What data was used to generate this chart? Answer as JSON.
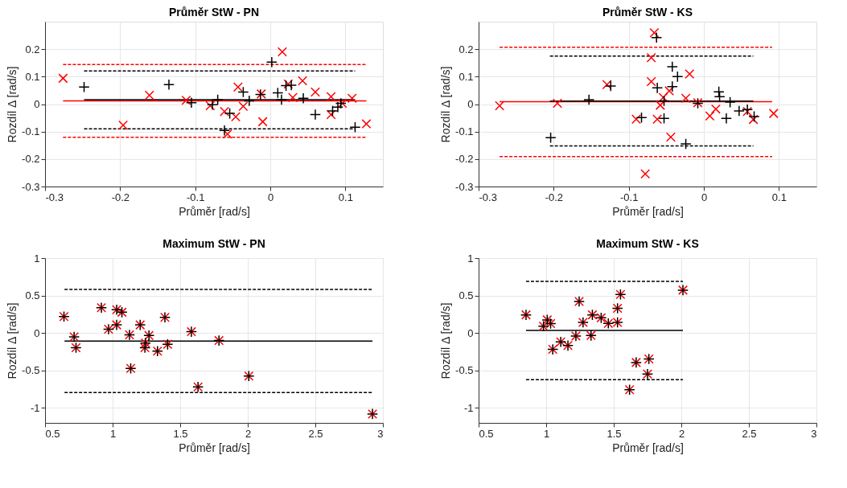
{
  "chart_data": [
    {
      "type": "scatter",
      "title": "Průměr StW - PN",
      "xlabel": "Průměr [rad/s]",
      "ylabel": "Rozdíl Δ [rad/s]",
      "xlim": [
        -0.3,
        0.15
      ],
      "ylim": [
        -0.3,
        0.3
      ],
      "xticks": [
        -0.3,
        -0.2,
        -0.1,
        0,
        0.1
      ],
      "yticks": [
        -0.3,
        -0.2,
        -0.1,
        0,
        0.1,
        0.2
      ],
      "grid": true,
      "series": [
        {
          "type": "line",
          "color": "#ff0000",
          "line_style": "dashed",
          "x": [
            -0.276,
            0.128
          ],
          "values": [
            0.144,
            0.144
          ]
        },
        {
          "type": "line",
          "color": "#ff0000",
          "line_style": "solid",
          "x": [
            -0.276,
            0.128
          ],
          "values": [
            0.012,
            0.012
          ]
        },
        {
          "type": "line",
          "color": "#ff0000",
          "line_style": "dashed",
          "x": [
            -0.276,
            0.128
          ],
          "values": [
            -0.121,
            -0.121
          ]
        },
        {
          "type": "line",
          "color": "#000000",
          "line_style": "dashed",
          "x": [
            -0.248,
            0.113
          ],
          "values": [
            0.121,
            0.121
          ]
        },
        {
          "type": "line",
          "color": "#000000",
          "line_style": "solid",
          "x": [
            -0.248,
            0.113
          ],
          "values": [
            0.016,
            0.016
          ]
        },
        {
          "type": "line",
          "color": "#000000",
          "line_style": "dashed",
          "x": [
            -0.248,
            0.113
          ],
          "values": [
            -0.09,
            -0.09
          ]
        },
        {
          "type": "scatter",
          "color": "#ff0000",
          "marker": "cross",
          "x": [
            -0.276,
            -0.196,
            -0.161,
            -0.112,
            -0.08,
            -0.061,
            -0.057,
            -0.046,
            -0.043,
            -0.036,
            -0.012,
            -0.01,
            0.016,
            0.024,
            0.03,
            0.043,
            0.06,
            0.081,
            0.081,
            0.096,
            0.109,
            0.128
          ],
          "values": [
            0.094,
            -0.077,
            0.032,
            0.014,
            -0.006,
            -0.027,
            -0.109,
            -0.046,
            0.062,
            -0.008,
            0.037,
            -0.064,
            0.19,
            0.073,
            0.024,
            0.085,
            0.044,
            0.027,
            -0.038,
            0.003,
            0.021,
            -0.072
          ]
        },
        {
          "type": "scatter",
          "color": "#000000",
          "marker": "plus",
          "x": [
            -0.248,
            -0.135,
            -0.105,
            -0.077,
            -0.07,
            -0.061,
            -0.054,
            -0.036,
            -0.028,
            -0.013,
            0.002,
            0.01,
            0.015,
            0.021,
            0.028,
            0.044,
            0.06,
            0.083,
            0.09,
            0.094,
            0.113
          ],
          "values": [
            0.062,
            0.071,
            0.005,
            -0.002,
            0.016,
            -0.096,
            -0.034,
            0.044,
            0.012,
            0.035,
            0.153,
            0.041,
            0.016,
            0.067,
            0.069,
            0.021,
            -0.038,
            -0.025,
            -0.011,
            0.003,
            -0.084
          ]
        }
      ]
    },
    {
      "type": "scatter",
      "title": "Průměr StW - KS",
      "xlabel": "Průměr [rad/s]",
      "ylabel": "Rozdíl Δ [rad/s]",
      "xlim": [
        -0.3,
        0.15
      ],
      "ylim": [
        -0.3,
        0.3
      ],
      "xticks": [
        -0.3,
        -0.2,
        -0.1,
        0,
        0.1
      ],
      "yticks": [
        -0.3,
        -0.2,
        -0.1,
        0,
        0.1,
        0.2
      ],
      "grid": true,
      "series": [
        {
          "type": "line",
          "color": "#ff0000",
          "line_style": "dashed",
          "x": [
            -0.272,
            0.091
          ],
          "values": [
            0.207,
            0.207
          ]
        },
        {
          "type": "line",
          "color": "#ff0000",
          "line_style": "solid",
          "x": [
            -0.272,
            0.091
          ],
          "values": [
            0.009,
            0.009
          ]
        },
        {
          "type": "line",
          "color": "#ff0000",
          "line_style": "dashed",
          "x": [
            -0.272,
            0.091
          ],
          "values": [
            -0.191,
            -0.191
          ]
        },
        {
          "type": "line",
          "color": "#000000",
          "line_style": "dashed",
          "x": [
            -0.205,
            0.066
          ],
          "values": [
            0.175,
            0.175
          ]
        },
        {
          "type": "line",
          "color": "#000000",
          "line_style": "solid",
          "x": [
            -0.205,
            0.066
          ],
          "values": [
            0.011,
            0.011
          ]
        },
        {
          "type": "line",
          "color": "#000000",
          "line_style": "dashed",
          "x": [
            -0.205,
            0.066
          ],
          "values": [
            -0.152,
            -0.152
          ]
        },
        {
          "type": "scatter",
          "color": "#ff0000",
          "marker": "cross",
          "x": [
            -0.272,
            -0.195,
            -0.129,
            -0.09,
            -0.078,
            -0.07,
            -0.07,
            -0.066,
            -0.062,
            -0.058,
            -0.054,
            -0.046,
            -0.044,
            -0.024,
            -0.019,
            -0.008,
            0.008,
            0.016,
            0.058,
            0.066,
            0.093
          ],
          "values": [
            -0.006,
            0.003,
            0.071,
            -0.055,
            -0.254,
            0.169,
            0.082,
            0.26,
            -0.055,
            -0.004,
            0.024,
            0.048,
            -0.12,
            0.021,
            0.11,
            0.005,
            -0.043,
            -0.018,
            -0.027,
            -0.056,
            -0.034
          ]
        },
        {
          "type": "scatter",
          "color": "#000000",
          "marker": "plus",
          "x": [
            -0.204,
            -0.153,
            -0.124,
            -0.083,
            -0.063,
            -0.062,
            -0.053,
            -0.053,
            -0.042,
            -0.042,
            -0.035,
            -0.024,
            -0.008,
            0.02,
            0.021,
            0.035,
            0.03,
            0.047,
            0.058,
            0.067
          ],
          "values": [
            -0.122,
            0.016,
            0.066,
            -0.049,
            0.242,
            0.059,
            -0.052,
            0.012,
            0.064,
            0.136,
            0.1,
            -0.145,
            0.003,
            0.045,
            0.027,
            0.007,
            -0.052,
            -0.025,
            -0.02,
            -0.045
          ]
        }
      ]
    },
    {
      "type": "scatter",
      "title": "Maximum StW - PN",
      "xlabel": "Průměr [rad/s]",
      "ylabel": "Rozdíl Δ [rad/s]",
      "xlim": [
        0.5,
        3
      ],
      "ylim": [
        -1.2,
        1
      ],
      "xticks": [
        0.5,
        1,
        1.5,
        2,
        2.5,
        3
      ],
      "yticks": [
        -1,
        -0.5,
        0,
        0.5,
        1
      ],
      "grid": true,
      "series": [
        {
          "type": "line",
          "color": "#000000",
          "line_style": "dashed",
          "x": [
            0.644,
            2.923
          ],
          "values": [
            0.581,
            0.581
          ]
        },
        {
          "type": "line",
          "color": "#000000",
          "line_style": "solid",
          "x": [
            0.644,
            2.923
          ],
          "values": [
            -0.108,
            -0.108
          ]
        },
        {
          "type": "line",
          "color": "#000000",
          "line_style": "dashed",
          "x": [
            0.644,
            2.923
          ],
          "values": [
            -0.794,
            -0.794
          ]
        },
        {
          "type": "scatter",
          "color": "#ff0000",
          "marker": "cross",
          "x": [
            0.64,
            0.715,
            0.729,
            0.917,
            0.97,
            1.03,
            1.03,
            1.069,
            1.134,
            1.125,
            1.204,
            1.239,
            1.243,
            1.269,
            1.332,
            1.387,
            1.407,
            1.583,
            1.632,
            1.787,
            2.008,
            2.923
          ],
          "values": [
            0.22,
            -0.051,
            -0.196,
            0.338,
            0.051,
            0.108,
            0.311,
            0.277,
            -0.473,
            -0.024,
            0.108,
            -0.196,
            -0.135,
            -0.034,
            -0.243,
            0.209,
            -0.152,
            0.017,
            -0.72,
            -0.101,
            -0.574,
            -1.081
          ]
        },
        {
          "type": "scatter",
          "color": "#000000",
          "marker": "plus",
          "x": [
            0.64,
            0.715,
            0.729,
            0.917,
            0.97,
            1.03,
            1.03,
            1.069,
            1.134,
            1.125,
            1.204,
            1.239,
            1.243,
            1.269,
            1.332,
            1.387,
            1.407,
            1.583,
            1.632,
            1.787,
            2.008,
            2.923
          ],
          "values": [
            0.22,
            -0.051,
            -0.196,
            0.338,
            0.051,
            0.108,
            0.311,
            0.277,
            -0.473,
            -0.024,
            0.108,
            -0.196,
            -0.135,
            -0.034,
            -0.243,
            0.209,
            -0.152,
            0.017,
            -0.72,
            -0.101,
            -0.574,
            -1.081
          ]
        }
      ]
    },
    {
      "type": "scatter",
      "title": "Maximum StW - KS",
      "xlabel": "Průměr [rad/s]",
      "ylabel": "Rozdíl Δ [rad/s]",
      "xlim": [
        0.5,
        3
      ],
      "ylim": [
        -1.2,
        1
      ],
      "xticks": [
        0.5,
        1,
        1.5,
        2,
        2.5,
        3
      ],
      "yticks": [
        -1,
        -0.5,
        0,
        0.5,
        1
      ],
      "grid": true,
      "series": [
        {
          "type": "line",
          "color": "#000000",
          "line_style": "dashed",
          "x": [
            0.851,
            2.012
          ],
          "values": [
            0.69,
            0.69
          ]
        },
        {
          "type": "line",
          "color": "#000000",
          "line_style": "solid",
          "x": [
            0.851,
            2.012
          ],
          "values": [
            0.034,
            0.034
          ]
        },
        {
          "type": "line",
          "color": "#000000",
          "line_style": "dashed",
          "x": [
            0.851,
            2.012
          ],
          "values": [
            -0.623,
            -0.623
          ]
        },
        {
          "type": "scatter",
          "color": "#ff0000",
          "marker": "cross",
          "x": [
            0.851,
            0.98,
            1.008,
            1.033,
            1.049,
            1.108,
            1.161,
            1.22,
            1.244,
            1.273,
            1.332,
            1.342,
            1.407,
            1.46,
            1.528,
            1.528,
            1.55,
            1.617,
            1.666,
            1.75,
            1.76,
            2.012
          ],
          "values": [
            0.242,
            0.091,
            0.175,
            0.125,
            -0.219,
            -0.118,
            -0.168,
            -0.04,
            0.421,
            0.141,
            -0.034,
            0.242,
            0.202,
            0.128,
            0.33,
            0.141,
            0.515,
            -0.758,
            -0.394,
            -0.549,
            -0.347,
            0.572
          ]
        },
        {
          "type": "scatter",
          "color": "#000000",
          "marker": "plus",
          "x": [
            0.851,
            0.98,
            1.008,
            1.033,
            1.049,
            1.108,
            1.161,
            1.22,
            1.244,
            1.273,
            1.332,
            1.342,
            1.407,
            1.46,
            1.528,
            1.528,
            1.55,
            1.617,
            1.666,
            1.75,
            1.76,
            2.012
          ],
          "values": [
            0.242,
            0.091,
            0.175,
            0.125,
            -0.219,
            -0.118,
            -0.168,
            -0.04,
            0.421,
            0.141,
            -0.034,
            0.242,
            0.202,
            0.128,
            0.33,
            0.141,
            0.515,
            -0.758,
            -0.394,
            -0.549,
            -0.347,
            0.572
          ]
        }
      ]
    }
  ]
}
